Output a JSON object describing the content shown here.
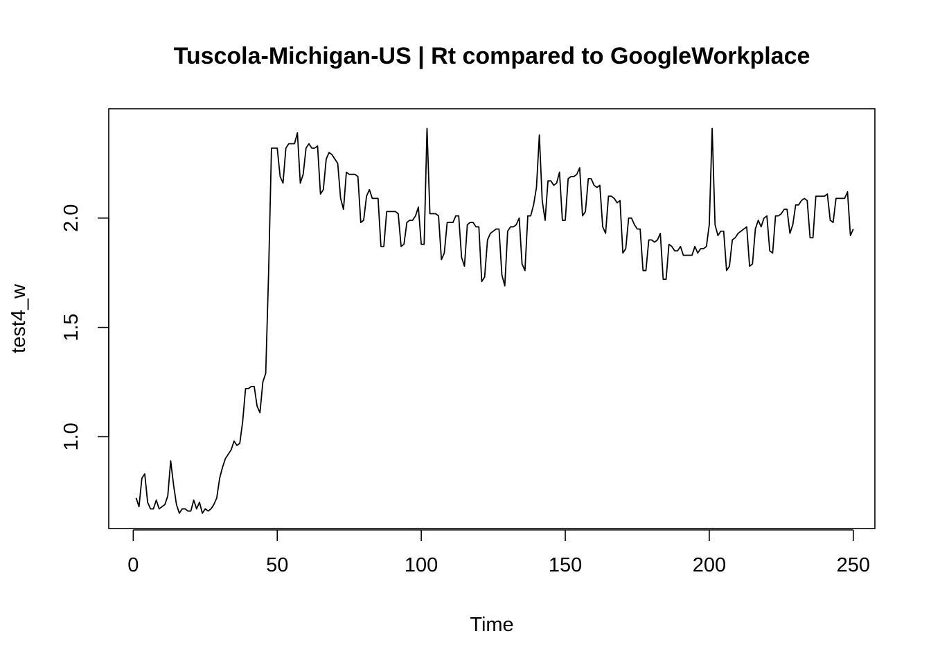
{
  "chart_data": {
    "type": "line",
    "title": "Tuscola-Michigan-US | Rt compared to GoogleWorkplace",
    "xlabel": "Time",
    "ylabel": "test4_w",
    "xlim": [
      -8.5,
      257.5
    ],
    "ylim": [
      0.58,
      2.5
    ],
    "x_ticks": [
      0,
      50,
      100,
      150,
      200,
      250
    ],
    "y_ticks": [
      1.0,
      1.5,
      2.0
    ],
    "x_tick_labels": [
      "0",
      "50",
      "100",
      "150",
      "200",
      "250"
    ],
    "y_tick_labels": [
      "1.0",
      "1.5",
      "2.0"
    ],
    "grid": false,
    "legend": "none",
    "series": [
      {
        "color": "#000000",
        "x_start": 1,
        "x_step": 1,
        "values": [
          0.72,
          0.68,
          0.81,
          0.83,
          0.7,
          0.67,
          0.67,
          0.71,
          0.67,
          0.68,
          0.69,
          0.73,
          0.89,
          0.78,
          0.69,
          0.65,
          0.67,
          0.67,
          0.66,
          0.66,
          0.71,
          0.67,
          0.7,
          0.65,
          0.67,
          0.66,
          0.67,
          0.69,
          0.72,
          0.81,
          0.86,
          0.9,
          0.92,
          0.94,
          0.98,
          0.96,
          0.97,
          1.07,
          1.22,
          1.22,
          1.23,
          1.23,
          1.14,
          1.11,
          1.25,
          1.29,
          1.75,
          2.32,
          2.32,
          2.32,
          2.19,
          2.16,
          2.32,
          2.34,
          2.34,
          2.34,
          2.39,
          2.16,
          2.2,
          2.32,
          2.34,
          2.32,
          2.32,
          2.33,
          2.11,
          2.13,
          2.27,
          2.3,
          2.29,
          2.27,
          2.25,
          2.09,
          2.04,
          2.21,
          2.2,
          2.2,
          2.2,
          2.19,
          1.98,
          1.99,
          2.1,
          2.13,
          2.09,
          2.09,
          2.09,
          1.87,
          1.87,
          2.03,
          2.03,
          2.03,
          2.03,
          2.02,
          1.87,
          1.88,
          1.98,
          1.99,
          1.99,
          2.01,
          2.05,
          1.88,
          1.88,
          2.41,
          2.02,
          2.02,
          2.02,
          2.01,
          1.81,
          1.84,
          1.98,
          1.98,
          1.98,
          2.01,
          2.01,
          1.82,
          1.78,
          1.97,
          1.98,
          1.98,
          1.96,
          1.96,
          1.71,
          1.73,
          1.9,
          1.93,
          1.94,
          1.95,
          1.95,
          1.74,
          1.69,
          1.94,
          1.96,
          1.96,
          1.97,
          2.0,
          1.79,
          1.76,
          2.01,
          2.01,
          2.06,
          2.14,
          2.38,
          2.08,
          1.99,
          2.17,
          2.17,
          2.15,
          2.16,
          2.21,
          1.99,
          1.99,
          2.18,
          2.19,
          2.19,
          2.2,
          2.23,
          2.01,
          2.03,
          2.18,
          2.18,
          2.15,
          2.14,
          2.15,
          1.96,
          1.93,
          2.1,
          2.1,
          2.09,
          2.07,
          2.08,
          1.84,
          1.86,
          2.0,
          2.0,
          1.97,
          1.95,
          1.95,
          1.76,
          1.76,
          1.9,
          1.9,
          1.89,
          1.9,
          1.93,
          1.72,
          1.72,
          1.88,
          1.87,
          1.85,
          1.85,
          1.87,
          1.83,
          1.83,
          1.83,
          1.83,
          1.87,
          1.84,
          1.86,
          1.86,
          1.87,
          1.97,
          2.41,
          1.97,
          1.92,
          1.94,
          1.94,
          1.76,
          1.78,
          1.9,
          1.91,
          1.93,
          1.94,
          1.95,
          1.96,
          1.78,
          1.79,
          1.95,
          1.99,
          1.96,
          2.0,
          2.01,
          1.85,
          1.84,
          2.01,
          2.01,
          2.02,
          2.04,
          2.04,
          1.93,
          1.97,
          2.06,
          2.06,
          2.08,
          2.09,
          2.08,
          1.91,
          1.91,
          2.1,
          2.1,
          2.1,
          2.1,
          2.11,
          1.99,
          1.98,
          2.09,
          2.09,
          2.09,
          2.09,
          2.12,
          1.92,
          1.95
        ]
      }
    ]
  }
}
